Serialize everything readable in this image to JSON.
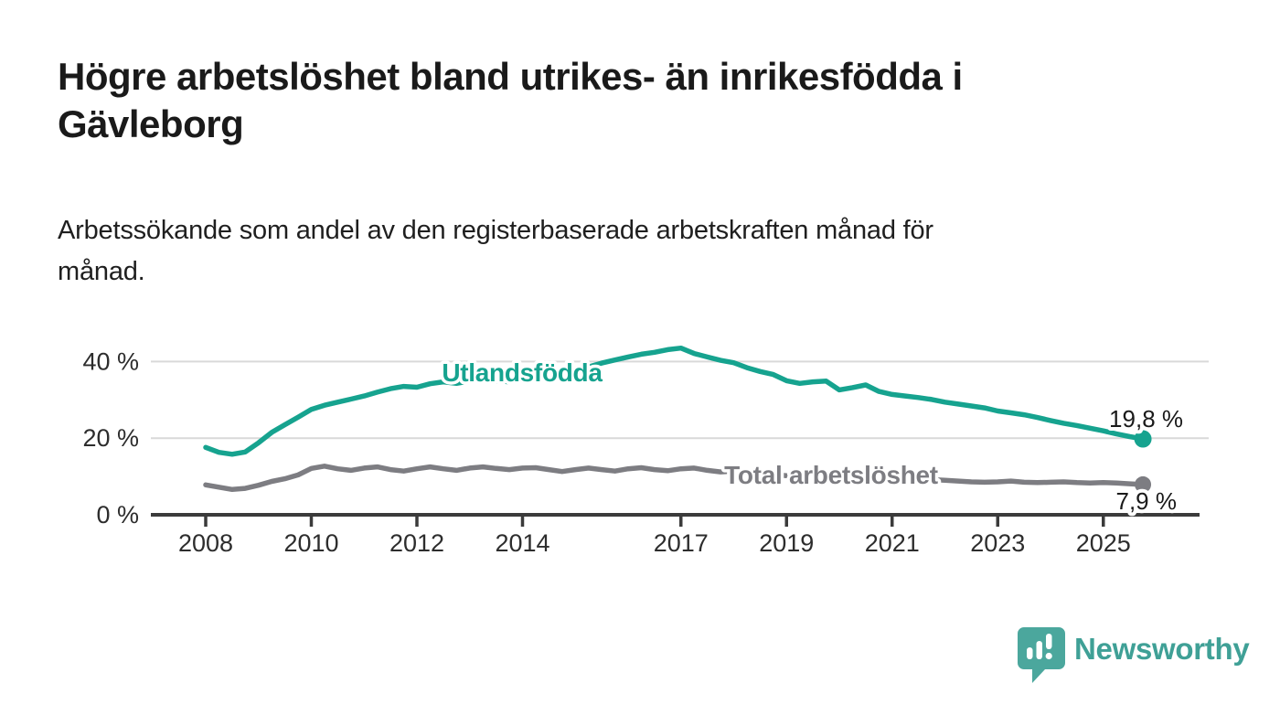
{
  "header": {
    "title_lines": [
      "Högre arbetslöshet bland utrikes- än inrikesfödda i",
      "Gävleborg"
    ],
    "subtitle_lines": [
      "Arbetssökande som andel av den registerbaserade arbetskraften månad för",
      "månad."
    ]
  },
  "chart_data": {
    "type": "line",
    "x_start": 2008.0,
    "x_step": 0.25,
    "x_end": 2025.75,
    "x_ticks": [
      2008,
      2010,
      2012,
      2014,
      2017,
      2019,
      2021,
      2023,
      2025
    ],
    "y_ticks": [
      {
        "value": 0,
        "label": "0 %"
      },
      {
        "value": 20,
        "label": "20 %"
      },
      {
        "value": 40,
        "label": "40 %"
      }
    ],
    "ylim": [
      0,
      47
    ],
    "grid": "horizontal",
    "legend_position": "inline-labels",
    "series": [
      {
        "name": "Utlandsfödda",
        "color": "#16a38f",
        "end_label": "19,8 %",
        "end_value": 19.8,
        "values": [
          17.6,
          16.3,
          15.8,
          16.4,
          18.8,
          21.5,
          23.5,
          25.5,
          27.5,
          28.6,
          29.4,
          30.2,
          31.0,
          32.0,
          32.9,
          33.5,
          33.3,
          34.2,
          34.7,
          34.3,
          34.9,
          35.3,
          35.0,
          34.7,
          35.6,
          36.2,
          36.5,
          36.9,
          37.6,
          38.6,
          39.6,
          40.4,
          41.2,
          41.9,
          42.4,
          43.1,
          43.5,
          42.1,
          41.2,
          40.3,
          39.7,
          38.4,
          37.4,
          36.6,
          35.0,
          34.3,
          34.7,
          34.9,
          32.6,
          33.2,
          33.9,
          32.2,
          31.4,
          31.0,
          30.6,
          30.1,
          29.4,
          28.9,
          28.4,
          27.9,
          27.1,
          26.6,
          26.1,
          25.4,
          24.6,
          23.9,
          23.3,
          22.6,
          21.9,
          21.1,
          20.4,
          19.8
        ]
      },
      {
        "name": "Total arbetslöshet",
        "color": "#7d7d82",
        "end_label": "7,9 %",
        "end_value": 7.9,
        "values": [
          7.8,
          7.2,
          6.6,
          6.9,
          7.7,
          8.7,
          9.4,
          10.4,
          12.1,
          12.7,
          12.0,
          11.6,
          12.2,
          12.5,
          11.8,
          11.4,
          12.0,
          12.5,
          12.0,
          11.6,
          12.2,
          12.5,
          12.1,
          11.8,
          12.2,
          12.3,
          11.8,
          11.3,
          11.8,
          12.2,
          11.8,
          11.4,
          12.0,
          12.3,
          11.8,
          11.5,
          12.0,
          12.2,
          11.6,
          11.2,
          11.4,
          11.2,
          10.8,
          10.5,
          10.2,
          10.0,
          10.2,
          10.0,
          10.0,
          10.6,
          11.0,
          10.6,
          10.3,
          10.0,
          9.6,
          9.2,
          9.0,
          8.8,
          8.6,
          8.5,
          8.6,
          8.8,
          8.5,
          8.4,
          8.5,
          8.6,
          8.4,
          8.3,
          8.4,
          8.3,
          8.1,
          7.9
        ]
      }
    ]
  },
  "branding": {
    "wordmark": "Newsworthy",
    "logo_icon": "speech-bubble-bar-chart",
    "badge_color": "#4ba79d",
    "wordmark_color": "#3fa096"
  },
  "colors": {
    "background": "#ffffff",
    "accent_teal": "#16a38f",
    "series_gray": "#7d7d82",
    "gridline": "#d9d9d9",
    "axis": "#3b3b3b",
    "text_dark": "#1a1a1a"
  }
}
